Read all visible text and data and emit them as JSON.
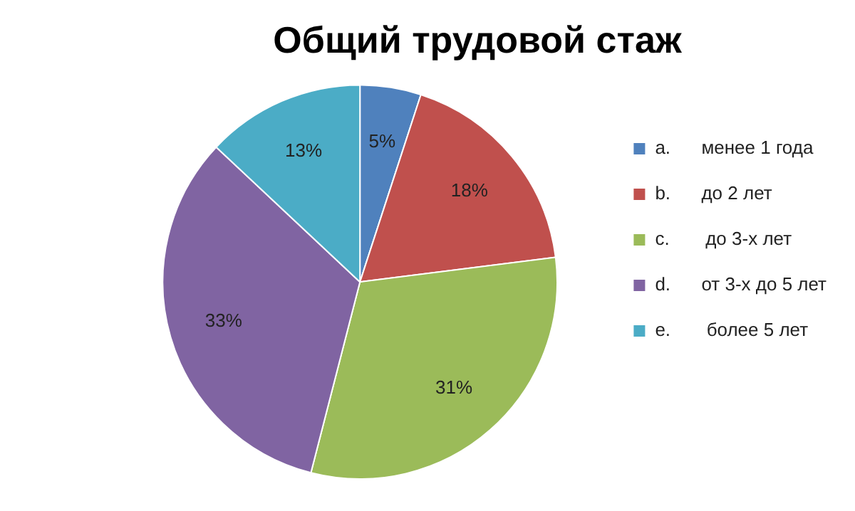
{
  "chart_data": {
    "type": "pie",
    "title": "Общий трудовой стаж",
    "categories": [
      "a.      менее 1 года",
      "b.      до 2 лет",
      "c.       до 3-х лет",
      "d.      от 3-х до 5 лет",
      "e.       более 5 лет"
    ],
    "values": [
      5,
      18,
      31,
      33,
      13
    ],
    "colors": [
      "#4f81bd",
      "#c0504d",
      "#9bbb59",
      "#8064a2",
      "#4bacc6"
    ],
    "value_labels": [
      "5%",
      "18%",
      "31%",
      "33%",
      "13%"
    ],
    "legend": "right"
  }
}
